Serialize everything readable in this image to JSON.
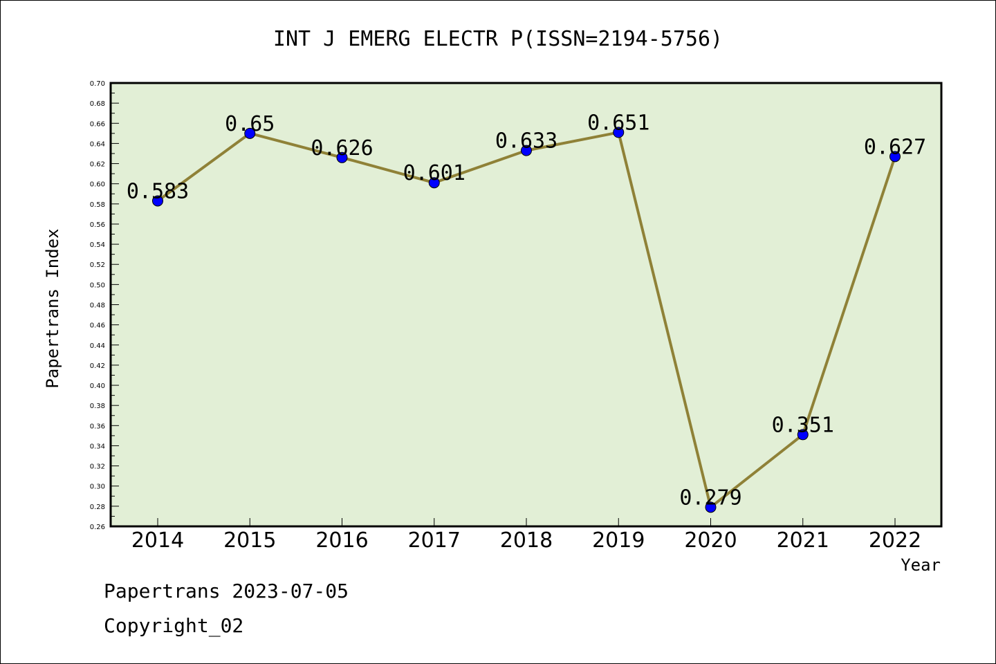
{
  "chart_data": {
    "type": "line",
    "title": "INT J EMERG ELECTR P(ISSN=2194-5756)",
    "xlabel": "Year",
    "ylabel": "Papertrans Index",
    "categories": [
      "2014",
      "2015",
      "2016",
      "2017",
      "2018",
      "2019",
      "2020",
      "2021",
      "2022"
    ],
    "values": [
      0.583,
      0.65,
      0.626,
      0.601,
      0.633,
      0.651,
      0.279,
      0.351,
      0.627
    ],
    "data_labels": [
      "0.583",
      "0.65",
      "0.626",
      "0.601",
      "0.633",
      "0.651",
      "0.279",
      "0.351",
      "0.627"
    ],
    "ylim": [
      0.26,
      0.7
    ],
    "yticks": [
      "0.26",
      "0.28",
      "0.30",
      "0.32",
      "0.34",
      "0.36",
      "0.38",
      "0.40",
      "0.42",
      "0.44",
      "0.46",
      "0.48",
      "0.50",
      "0.52",
      "0.54",
      "0.56",
      "0.58",
      "0.60",
      "0.62",
      "0.64",
      "0.66",
      "0.68",
      "0.70"
    ],
    "grid": false,
    "colors": {
      "plot_background": "#e2efd6",
      "line": "#8f8137",
      "marker": "#0000ff"
    }
  },
  "footer": {
    "line1": "Papertrans 2023-07-05",
    "line2": "Copyright_02"
  }
}
